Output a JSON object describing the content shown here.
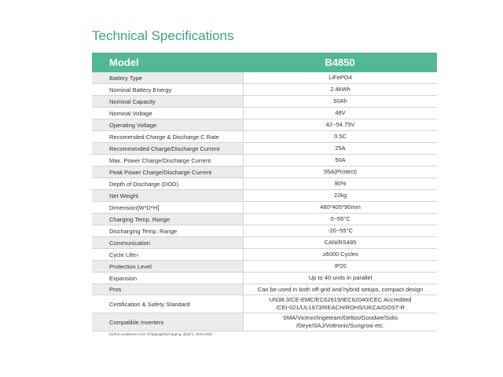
{
  "title": "Technical Specifications",
  "header": {
    "label": "Model",
    "value": "B4850"
  },
  "rows": [
    {
      "label": "Battery Type",
      "value": [
        "LiFePO4"
      ]
    },
    {
      "label": "Nominal Battery Energy",
      "value": [
        "2.4kWh"
      ]
    },
    {
      "label": "Nominal Capacity",
      "value": [
        "50Ah"
      ]
    },
    {
      "label": "Nominal Voltage",
      "value": [
        "48V"
      ]
    },
    {
      "label": "Operating Voltage",
      "value": [
        "42~54.75V"
      ]
    },
    {
      "label": "Recomended Charge & Discharge C Rate",
      "value": [
        "0.5C"
      ]
    },
    {
      "label": "Recommended Charge/Discharge Current",
      "value": [
        "25A"
      ]
    },
    {
      "label": "Max. Power Charge/Discharge Current",
      "value": [
        "50A"
      ]
    },
    {
      "label": "Peak Power Charge/Discharge Current",
      "value": [
        "55A(Protect)"
      ]
    },
    {
      "label": "Depth of Discharge (DOD)",
      "value": [
        "90%"
      ]
    },
    {
      "label": "Net Weight",
      "value": [
        "22kg"
      ]
    },
    {
      "label": "Dimension[W*D*H]",
      "value": [
        "480*405*90mm"
      ]
    },
    {
      "label": "Charging Temp. Range",
      "value": [
        "0~55°C"
      ]
    },
    {
      "label": "Discharging Temp. Range",
      "value": [
        "-20~55°C"
      ]
    },
    {
      "label": "Communication",
      "value": [
        "CAN/RS485"
      ]
    },
    {
      "label": "Cycle Life",
      "note": "[1]",
      "value": [
        "≥6000 Cycles"
      ]
    },
    {
      "label": "Protection Level",
      "value": [
        "IP20"
      ]
    },
    {
      "label": "Expansion",
      "value": [
        "Up to 40 units in parallel"
      ]
    },
    {
      "label": "Pros",
      "value": [
        "Can be used in both off-grid and hybrid setups, compact design"
      ]
    },
    {
      "label": "Certification & Safety Standard",
      "value": [
        "UN38.3/CE-EMC/EC62619/IEC62040/CEC Accredited",
        "/CEI-021/UL1973/REACH/ROHS/UKCA/GOST-R"
      ]
    },
    {
      "label": "Compatible Inverters",
      "value": [
        "SMA/Victron/Ingeteam/Delios/Goodwe/Solis",
        "/Deye/SAJ/Voltronic/Sungrow etc."
      ]
    }
  ],
  "footnote": "[1]Test conditions: 0.2C Charging/Discharging, @25°C, 90% DOD"
}
